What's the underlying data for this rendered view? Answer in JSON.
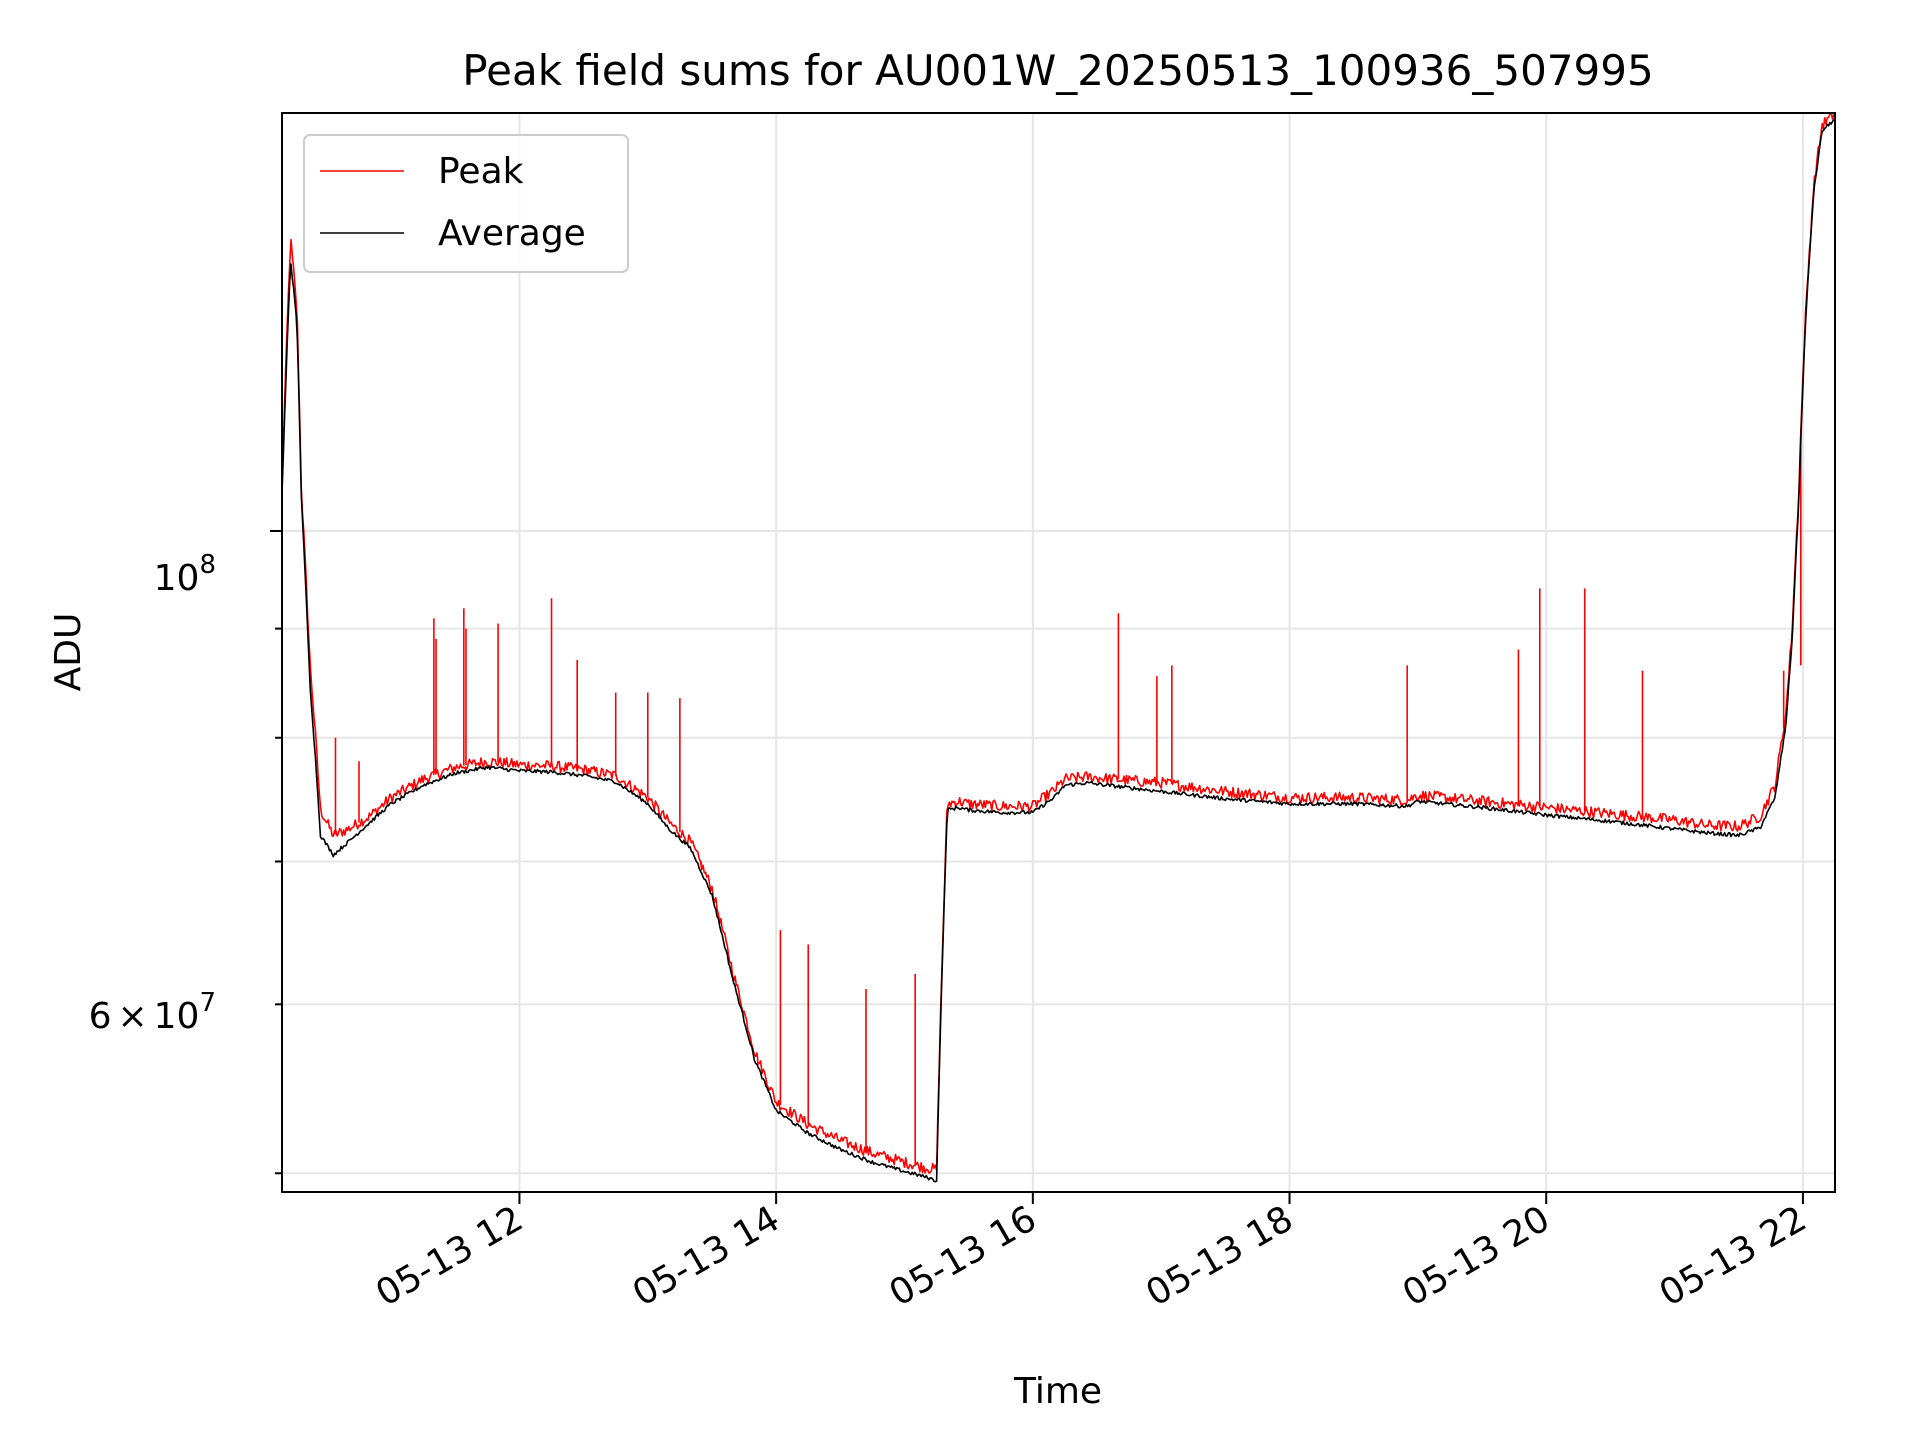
{
  "chart_data": {
    "type": "line",
    "title": "Peak field sums for AU001W_20250513_100936_507995",
    "xlabel": "Time",
    "ylabel": "ADU",
    "yscale": "log",
    "ylim": [
      49000000,
      157000000
    ],
    "xlim": [
      "2025-05-13 10:09",
      "2025-05-13 22:15"
    ],
    "grid": true,
    "legend_position": "upper left",
    "x_tick_labels": [
      "05-13 12",
      "05-13 14",
      "05-13 16",
      "05-13 18",
      "05-13 20",
      "05-13 22"
    ],
    "y_tick_labels": [
      {
        "base": "10",
        "exp": "8",
        "label": "10^8"
      },
      {
        "mantissa": "6",
        "times": "×",
        "base": "10",
        "exp": "7",
        "label": "6×10^7"
      }
    ],
    "colors": {
      "peak": "#ff0000",
      "average": "#000000",
      "grid": "#e6e6e6"
    },
    "series": [
      {
        "name": "Peak",
        "x": [
          "10:09",
          "10:13",
          "10:16",
          "10:18",
          "10:22",
          "10:27",
          "10:33",
          "10:40",
          "10:50",
          "11:00",
          "11:15",
          "11:30",
          "11:45",
          "12:00",
          "12:15",
          "12:30",
          "12:45",
          "13:00",
          "13:10",
          "13:20",
          "13:30",
          "13:40",
          "13:50",
          "14:00",
          "14:15",
          "14:30",
          "14:45",
          "15:00",
          "15:10",
          "15:15",
          "15:20",
          "15:25",
          "15:30",
          "15:45",
          "16:00",
          "16:10",
          "16:15",
          "16:25",
          "16:45",
          "17:00",
          "17:30",
          "18:00",
          "18:30",
          "18:55",
          "19:00",
          "19:30",
          "20:00",
          "20:30",
          "21:00",
          "21:15",
          "21:30",
          "21:40",
          "21:47",
          "21:52",
          "21:55",
          "21:58",
          "22:01",
          "22:05",
          "22:09",
          "22:15"
        ],
        "y": [
          105000000,
          137000000,
          127000000,
          105000000,
          87000000,
          74000000,
          72000000,
          72500000,
          73500000,
          75000000,
          76500000,
          77500000,
          78000000,
          77700000,
          77600000,
          77300000,
          76800000,
          75000000,
          73000000,
          71500000,
          68000000,
          62000000,
          57000000,
          54000000,
          52700000,
          51800000,
          51100000,
          50600000,
          50300000,
          50200000,
          74500000,
          74700000,
          74500000,
          74300000,
          74300000,
          75600000,
          76500000,
          76700000,
          76400000,
          76200000,
          75500000,
          75000000,
          75000000,
          74800000,
          75200000,
          74700000,
          74200000,
          73700000,
          73200000,
          72800000,
          72700000,
          73500000,
          76000000,
          82000000,
          90000000,
          104000000,
          125000000,
          145000000,
          155000000,
          157000000
        ],
        "spikes": [
          {
            "x": "10:34",
            "y": 80000000
          },
          {
            "x": "10:45",
            "y": 78000000
          },
          {
            "x": "11:20",
            "y": 91000000
          },
          {
            "x": "11:21",
            "y": 89000000
          },
          {
            "x": "11:34",
            "y": 92000000
          },
          {
            "x": "11:35",
            "y": 90000000
          },
          {
            "x": "11:50",
            "y": 90500000
          },
          {
            "x": "12:15",
            "y": 93000000
          },
          {
            "x": "12:27",
            "y": 87000000
          },
          {
            "x": "12:45",
            "y": 84000000
          },
          {
            "x": "13:00",
            "y": 84000000
          },
          {
            "x": "13:15",
            "y": 83500000
          },
          {
            "x": "13:25",
            "y": 70000000
          },
          {
            "x": "14:02",
            "y": 65000000
          },
          {
            "x": "14:15",
            "y": 64000000
          },
          {
            "x": "14:42",
            "y": 61000000
          },
          {
            "x": "15:05",
            "y": 62000000
          },
          {
            "x": "16:40",
            "y": 91500000
          },
          {
            "x": "16:58",
            "y": 85500000
          },
          {
            "x": "17:05",
            "y": 86500000
          },
          {
            "x": "18:55",
            "y": 86500000
          },
          {
            "x": "19:47",
            "y": 88000000
          },
          {
            "x": "19:57",
            "y": 94000000
          },
          {
            "x": "20:18",
            "y": 94000000
          },
          {
            "x": "20:45",
            "y": 86000000
          },
          {
            "x": "21:51",
            "y": 86000000
          },
          {
            "x": "21:59",
            "y": 86500000
          }
        ]
      },
      {
        "name": "Average",
        "x": [
          "10:09",
          "10:13",
          "10:16",
          "10:18",
          "10:22",
          "10:27",
          "10:33",
          "10:40",
          "10:50",
          "11:00",
          "11:15",
          "11:30",
          "11:45",
          "12:00",
          "12:15",
          "12:30",
          "12:45",
          "13:00",
          "13:10",
          "13:20",
          "13:30",
          "13:40",
          "13:50",
          "14:00",
          "14:15",
          "14:30",
          "14:45",
          "15:00",
          "15:10",
          "15:15",
          "15:20",
          "15:25",
          "15:30",
          "15:45",
          "16:00",
          "16:10",
          "16:15",
          "16:25",
          "16:45",
          "17:00",
          "17:30",
          "18:00",
          "18:30",
          "18:55",
          "19:00",
          "19:30",
          "20:00",
          "20:30",
          "21:00",
          "21:15",
          "21:30",
          "21:40",
          "21:47",
          "21:52",
          "21:55",
          "21:58",
          "22:01",
          "22:05",
          "22:09",
          "22:15"
        ],
        "y": [
          104000000,
          134000000,
          125000000,
          104000000,
          85000000,
          72000000,
          70500000,
          71500000,
          73000000,
          74500000,
          76000000,
          77000000,
          77500000,
          77200000,
          77100000,
          76800000,
          76300000,
          74500000,
          72500000,
          71000000,
          67500000,
          61500000,
          56500000,
          53500000,
          52200000,
          51300000,
          50600000,
          50100000,
          49800000,
          49600000,
          74000000,
          74200000,
          74000000,
          73800000,
          73800000,
          75000000,
          76000000,
          76200000,
          75800000,
          75500000,
          74900000,
          74500000,
          74500000,
          74300000,
          74700000,
          74200000,
          73600000,
          73100000,
          72500000,
          72200000,
          72000000,
          72600000,
          75000000,
          81000000,
          89000000,
          103000000,
          124000000,
          144000000,
          154000000,
          156000000
        ]
      }
    ]
  }
}
